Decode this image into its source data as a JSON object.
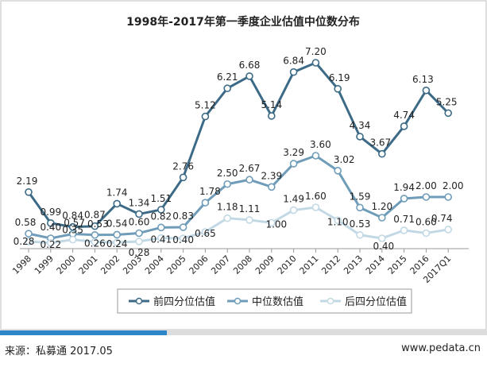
{
  "chart_data": {
    "type": "line",
    "title": "1998年-2017年第一季度企业估值中位数分布",
    "categories": [
      "1998",
      "1999",
      "2000",
      "2001",
      "2002",
      "2003",
      "2004",
      "2005",
      "2006",
      "2007",
      "2008",
      "2009",
      "2010",
      "2011",
      "2012",
      "2013",
      "2014",
      "2015",
      "2016",
      "2017Q1"
    ],
    "series": [
      {
        "name": "前四分位估值",
        "color": "#3d6b87",
        "values": [
          2.19,
          0.99,
          0.84,
          0.87,
          1.74,
          1.34,
          1.51,
          2.76,
          5.12,
          6.21,
          6.68,
          5.14,
          6.84,
          7.2,
          6.19,
          4.34,
          3.67,
          4.74,
          6.13,
          5.25
        ]
      },
      {
        "name": "中位数估值",
        "color": "#6f9cb8",
        "values": [
          0.58,
          0.4,
          0.57,
          0.53,
          0.54,
          0.6,
          0.82,
          0.83,
          1.78,
          2.5,
          2.67,
          2.39,
          3.29,
          3.6,
          3.02,
          1.59,
          1.2,
          1.94,
          2.0,
          2.0
        ]
      },
      {
        "name": "后四分位估值",
        "color": "#c2d9e5",
        "values": [
          0.28,
          0.22,
          0.35,
          0.26,
          0.24,
          0.28,
          0.41,
          0.4,
          0.65,
          1.18,
          1.11,
          1.0,
          1.49,
          1.6,
          1.1,
          0.53,
          0.4,
          0.71,
          0.6,
          0.74
        ]
      }
    ],
    "ylim": [
      0,
      8
    ],
    "grid": false,
    "legend_position": "bottom"
  },
  "footer": {
    "source": "来源：私募通  2017.05",
    "website": "www.pedata.cn"
  }
}
